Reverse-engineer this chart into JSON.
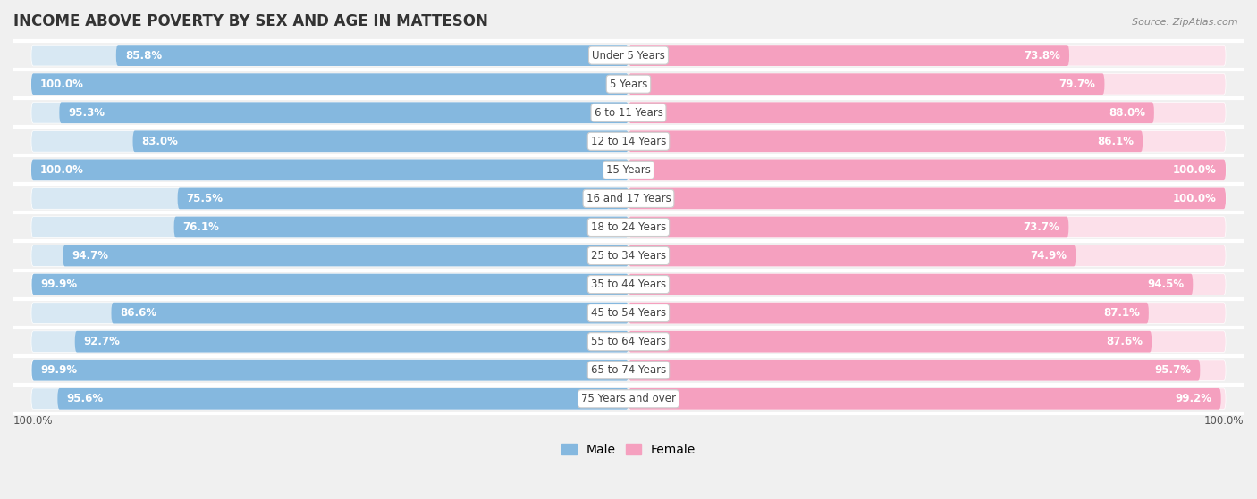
{
  "title": "INCOME ABOVE POVERTY BY SEX AND AGE IN MATTESON",
  "source": "Source: ZipAtlas.com",
  "categories": [
    "Under 5 Years",
    "5 Years",
    "6 to 11 Years",
    "12 to 14 Years",
    "15 Years",
    "16 and 17 Years",
    "18 to 24 Years",
    "25 to 34 Years",
    "35 to 44 Years",
    "45 to 54 Years",
    "55 to 64 Years",
    "65 to 74 Years",
    "75 Years and over"
  ],
  "male_values": [
    85.8,
    100.0,
    95.3,
    83.0,
    100.0,
    75.5,
    76.1,
    94.7,
    99.9,
    86.6,
    92.7,
    99.9,
    95.6
  ],
  "female_values": [
    73.8,
    79.7,
    88.0,
    86.1,
    100.0,
    100.0,
    73.7,
    74.9,
    94.5,
    87.1,
    87.6,
    95.7,
    99.2
  ],
  "male_color": "#85b8df",
  "female_color": "#f5a0bf",
  "bg_color": "#f0f0f0",
  "bar_bg_male": "#d8e8f3",
  "bar_bg_female": "#fce0ea",
  "row_bg": "#e8e8e8",
  "title_fontsize": 12,
  "label_fontsize": 8.5,
  "value_fontsize": 8.5,
  "legend_fontsize": 10,
  "max_val": 100.0
}
